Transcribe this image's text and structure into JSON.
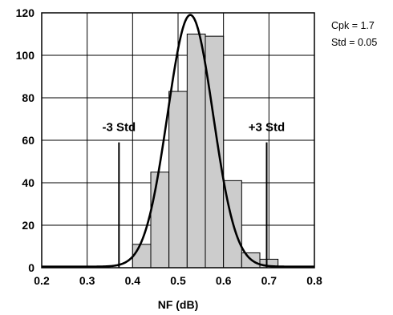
{
  "chart_data": {
    "type": "bar",
    "xlabel": "NF (dB)",
    "ylabel": "",
    "xlim": [
      0.2,
      0.8
    ],
    "ylim": [
      0,
      120
    ],
    "x_ticks": [
      "0.2",
      "0.3",
      "0.4",
      "0.5",
      "0.6",
      "0.7",
      "0.8"
    ],
    "y_ticks": [
      "0",
      "20",
      "40",
      "60",
      "80",
      "100",
      "120"
    ],
    "grid": true,
    "bins": [
      {
        "start": 0.36,
        "end": 0.4,
        "count": 0
      },
      {
        "start": 0.4,
        "end": 0.44,
        "count": 11
      },
      {
        "start": 0.44,
        "end": 0.48,
        "count": 45
      },
      {
        "start": 0.48,
        "end": 0.52,
        "count": 83
      },
      {
        "start": 0.52,
        "end": 0.56,
        "count": 110
      },
      {
        "start": 0.56,
        "end": 0.6,
        "count": 109
      },
      {
        "start": 0.6,
        "end": 0.64,
        "count": 41
      },
      {
        "start": 0.64,
        "end": 0.68,
        "count": 7
      },
      {
        "start": 0.68,
        "end": 0.72,
        "count": 4
      }
    ],
    "fit_curve": {
      "type": "normal",
      "mean": 0.527,
      "std": 0.05,
      "peak": 119,
      "baseline": 0.5
    },
    "markers": [
      {
        "label": "-3 Std",
        "x": 0.37,
        "height": 59
      },
      {
        "label": "+3 Std",
        "x": 0.695,
        "height": 59
      }
    ],
    "annotations": [
      "Cpk = 1.7",
      "Std = 0.05"
    ]
  }
}
